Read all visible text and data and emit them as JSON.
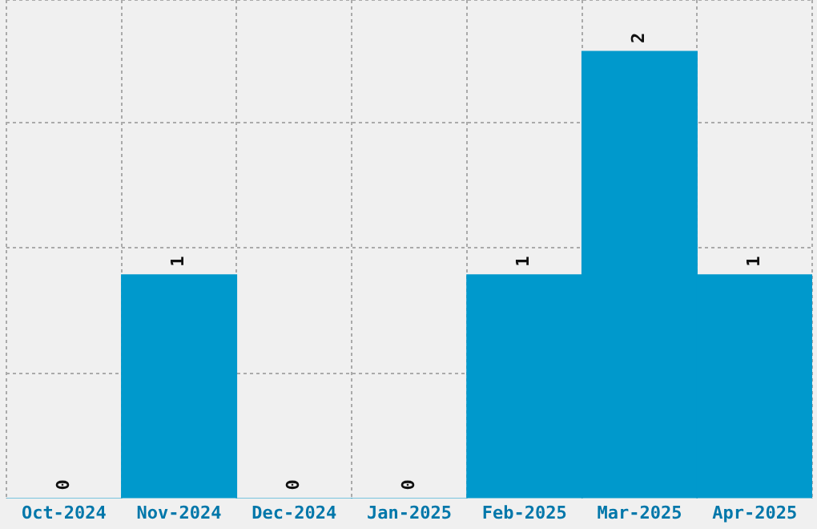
{
  "chart_data": {
    "type": "bar",
    "categories": [
      "Oct-2024",
      "Nov-2024",
      "Dec-2024",
      "Jan-2025",
      "Feb-2025",
      "Mar-2025",
      "Apr-2025"
    ],
    "values": [
      0,
      1,
      0,
      0,
      1,
      2,
      1
    ],
    "color": "#0099cc",
    "ylim": [
      0,
      2.23
    ],
    "yticks": [
      {
        "value": 0.56,
        "label": null
      },
      {
        "value": 1.12,
        "label": null
      },
      {
        "value": 1.68,
        "label": null
      },
      {
        "value": 2.23,
        "label": null
      }
    ],
    "grid": true,
    "data_labels": true,
    "tick_labels": "x"
  }
}
